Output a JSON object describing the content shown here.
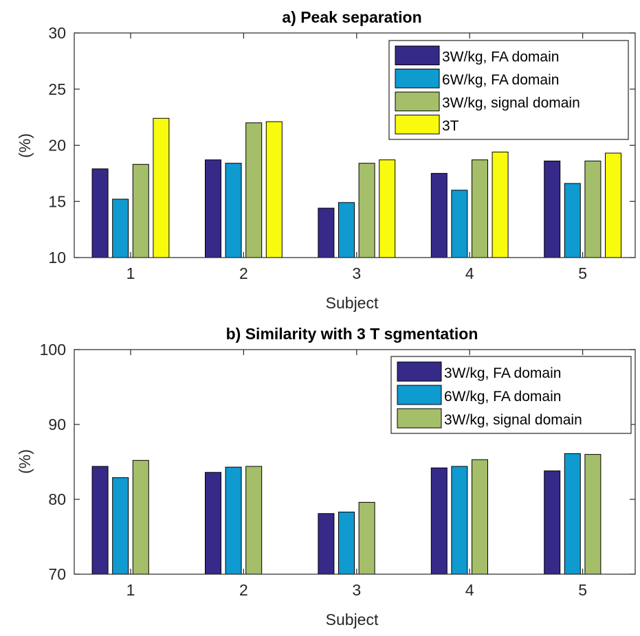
{
  "chart_data": [
    {
      "type": "bar",
      "title": "a) Peak separation",
      "xlabel": "Subject",
      "ylabel": "(%)",
      "categories": [
        "1",
        "2",
        "3",
        "4",
        "5"
      ],
      "ylim": [
        10,
        30
      ],
      "yticks": [
        "10",
        "15",
        "20",
        "25",
        "30"
      ],
      "legend_position": "top-right",
      "series": [
        {
          "name": "3W/kg, FA domain",
          "color": "#352a87",
          "values": [
            17.9,
            18.7,
            14.4,
            17.5,
            18.6
          ]
        },
        {
          "name": "6W/kg, FA domain",
          "color": "#0f9ad0",
          "values": [
            15.2,
            18.4,
            14.9,
            16.0,
            16.6
          ]
        },
        {
          "name": "3W/kg, signal domain",
          "color": "#a5be6a",
          "values": [
            18.3,
            22.0,
            18.4,
            18.7,
            18.6
          ]
        },
        {
          "name": "3T",
          "color": "#f9fb0e",
          "values": [
            22.4,
            22.1,
            18.7,
            19.4,
            19.3
          ]
        }
      ]
    },
    {
      "type": "bar",
      "title": "b) Similarity with 3 T sgmentation",
      "xlabel": "Subject",
      "ylabel": "(%)",
      "categories": [
        "1",
        "2",
        "3",
        "4",
        "5"
      ],
      "ylim": [
        70,
        100
      ],
      "yticks": [
        "70",
        "80",
        "90",
        "100"
      ],
      "legend_position": "top-right",
      "series": [
        {
          "name": "3W/kg, FA domain",
          "color": "#352a87",
          "values": [
            84.4,
            83.6,
            78.1,
            84.2,
            83.8
          ]
        },
        {
          "name": "6W/kg, FA domain",
          "color": "#0f9ad0",
          "values": [
            82.9,
            84.3,
            78.3,
            84.4,
            86.1
          ]
        },
        {
          "name": "3W/kg, signal domain",
          "color": "#a5be6a",
          "values": [
            85.2,
            84.4,
            79.6,
            85.3,
            86.0
          ]
        },
        {
          "name": "",
          "color": "#f9fb0e",
          "values": [
            70,
            70,
            70,
            70,
            70
          ]
        }
      ]
    }
  ]
}
